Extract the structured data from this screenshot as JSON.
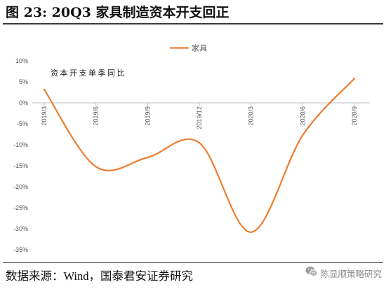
{
  "source": "数据来源：Wind，国泰君安证券研究",
  "watermark": {
    "text": "陈显顺策略研究",
    "icon": "wechat-icon"
  },
  "colors": {
    "series": "#ED7D31",
    "axis": "#BFBFBF",
    "tick_text": "#595959",
    "rule": "#3A3A3A"
  },
  "chart_data": {
    "type": "line",
    "title": "图 23: 20Q3 家具制造资本开支回正",
    "xlabel": "",
    "ylabel": "",
    "annotations": [
      "资本开支单季同比"
    ],
    "categories": [
      "2019/3",
      "2019/6",
      "2019/9",
      "2019/12",
      "2020/3",
      "2020/6",
      "2020/9"
    ],
    "series": [
      {
        "name": "家具",
        "values": [
          3.2,
          -15.2,
          -13.0,
          -9.5,
          -30.8,
          -7.7,
          5.8
        ],
        "color": "#ED7D31",
        "smooth": true,
        "markers": false
      }
    ],
    "y_ticks": [
      "10%",
      "5%",
      "0%",
      "-5%",
      "-10%",
      "-15%",
      "-20%",
      "-25%",
      "-30%",
      "-35%"
    ],
    "ylim": [
      -35,
      10
    ],
    "x_axis_crosses": 0,
    "grid": false,
    "legend": "top-center"
  }
}
